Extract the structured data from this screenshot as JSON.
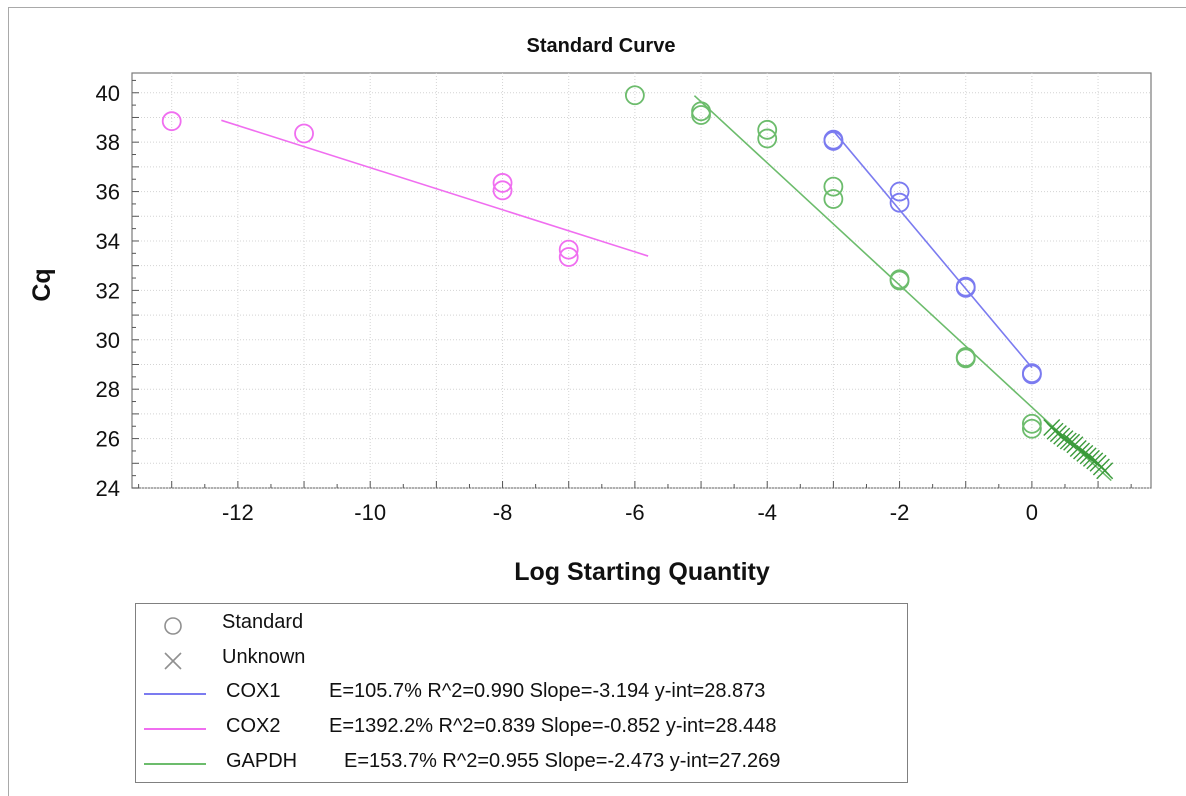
{
  "chart_data": {
    "type": "scatter",
    "title": "Standard Curve",
    "xlabel": "Log Starting Quantity",
    "ylabel": "Cq",
    "xlim": [
      -13.6,
      1.8
    ],
    "ylim": [
      24,
      40.8
    ],
    "xticks": [
      -12,
      -10,
      -8,
      -6,
      -4,
      -2,
      0
    ],
    "yticks": [
      24,
      26,
      28,
      30,
      32,
      34,
      36,
      38,
      40
    ],
    "grid": true,
    "legend_position": "bottom",
    "series": [
      {
        "name": "COX1",
        "color": "#7b7bf0",
        "marker": "circle",
        "points": [
          [
            -3,
            38.1
          ],
          [
            -3,
            38.05
          ],
          [
            -2,
            36.0
          ],
          [
            -2,
            35.55
          ],
          [
            -1,
            32.15
          ],
          [
            -1,
            32.1
          ],
          [
            0,
            28.65
          ],
          [
            0,
            28.6
          ]
        ],
        "fit": {
          "x_from": -3.0,
          "x_to": 0.0,
          "efficiency": "E=105.7%",
          "r2": "R^2=0.990",
          "slope": "Slope=-3.194",
          "yint": "y-int=28.873"
        }
      },
      {
        "name": "COX2",
        "color": "#f06ef0",
        "marker": "circle",
        "points": [
          [
            -13,
            38.85
          ],
          [
            -11,
            38.35
          ],
          [
            -8,
            36.35
          ],
          [
            -8,
            36.05
          ],
          [
            -7,
            33.65
          ],
          [
            -7,
            33.35
          ]
        ],
        "fit": {
          "x_from": -12.25,
          "x_to": -5.8,
          "efficiency": "E=1392.2%",
          "r2": "R^2=0.839",
          "slope": "Slope=-0.852",
          "yint": "y-int=28.448"
        }
      },
      {
        "name": "GAPDH",
        "color": "#6cbc6c",
        "marker": "circle",
        "points": [
          [
            -6,
            39.9
          ],
          [
            -5,
            39.25
          ],
          [
            -5,
            39.1
          ],
          [
            -4,
            38.5
          ],
          [
            -4,
            38.15
          ],
          [
            -3,
            36.2
          ],
          [
            -3,
            35.7
          ],
          [
            -2,
            32.45
          ],
          [
            -2,
            32.4
          ],
          [
            -1,
            29.3
          ],
          [
            -1,
            29.25
          ],
          [
            0,
            26.6
          ],
          [
            0,
            26.4
          ]
        ],
        "fit": {
          "x_from": -5.1,
          "x_to": 1.2,
          "efficiency": "E=153.7%",
          "r2": "R^2=0.955",
          "slope": "Slope=-2.473",
          "yint": "y-int=27.269"
        }
      }
    ],
    "unknowns": {
      "color": "#3a9a3a",
      "marker": "x",
      "points": [
        [
          0.3,
          26.45
        ],
        [
          0.35,
          26.3
        ],
        [
          0.4,
          26.2
        ],
        [
          0.45,
          26.1
        ],
        [
          0.5,
          26.0
        ],
        [
          0.55,
          25.9
        ],
        [
          0.6,
          25.85
        ],
        [
          0.65,
          25.75
        ],
        [
          0.7,
          25.6
        ],
        [
          0.75,
          25.5
        ],
        [
          0.8,
          25.4
        ],
        [
          0.85,
          25.3
        ],
        [
          0.9,
          25.2
        ],
        [
          0.95,
          25.1
        ],
        [
          1.0,
          25.0
        ],
        [
          1.05,
          24.85
        ],
        [
          1.1,
          24.7
        ]
      ]
    }
  },
  "legend": {
    "standard_label": "Standard",
    "unknown_label": "Unknown",
    "entries": [
      {
        "name": "COX1",
        "stats": "E=105.7% R^2=0.990 Slope=-3.194 y-int=28.873",
        "color": "#7b7bf0"
      },
      {
        "name": "COX2",
        "stats": "E=1392.2% R^2=0.839 Slope=-0.852 y-int=28.448",
        "color": "#f06ef0"
      },
      {
        "name": "GAPDH",
        "stats": "E=153.7% R^2=0.955 Slope=-2.473 y-int=27.269",
        "color": "#6cbc6c"
      }
    ],
    "standard_symbol_color": "#909090",
    "unknown_symbol_color": "#909090"
  }
}
